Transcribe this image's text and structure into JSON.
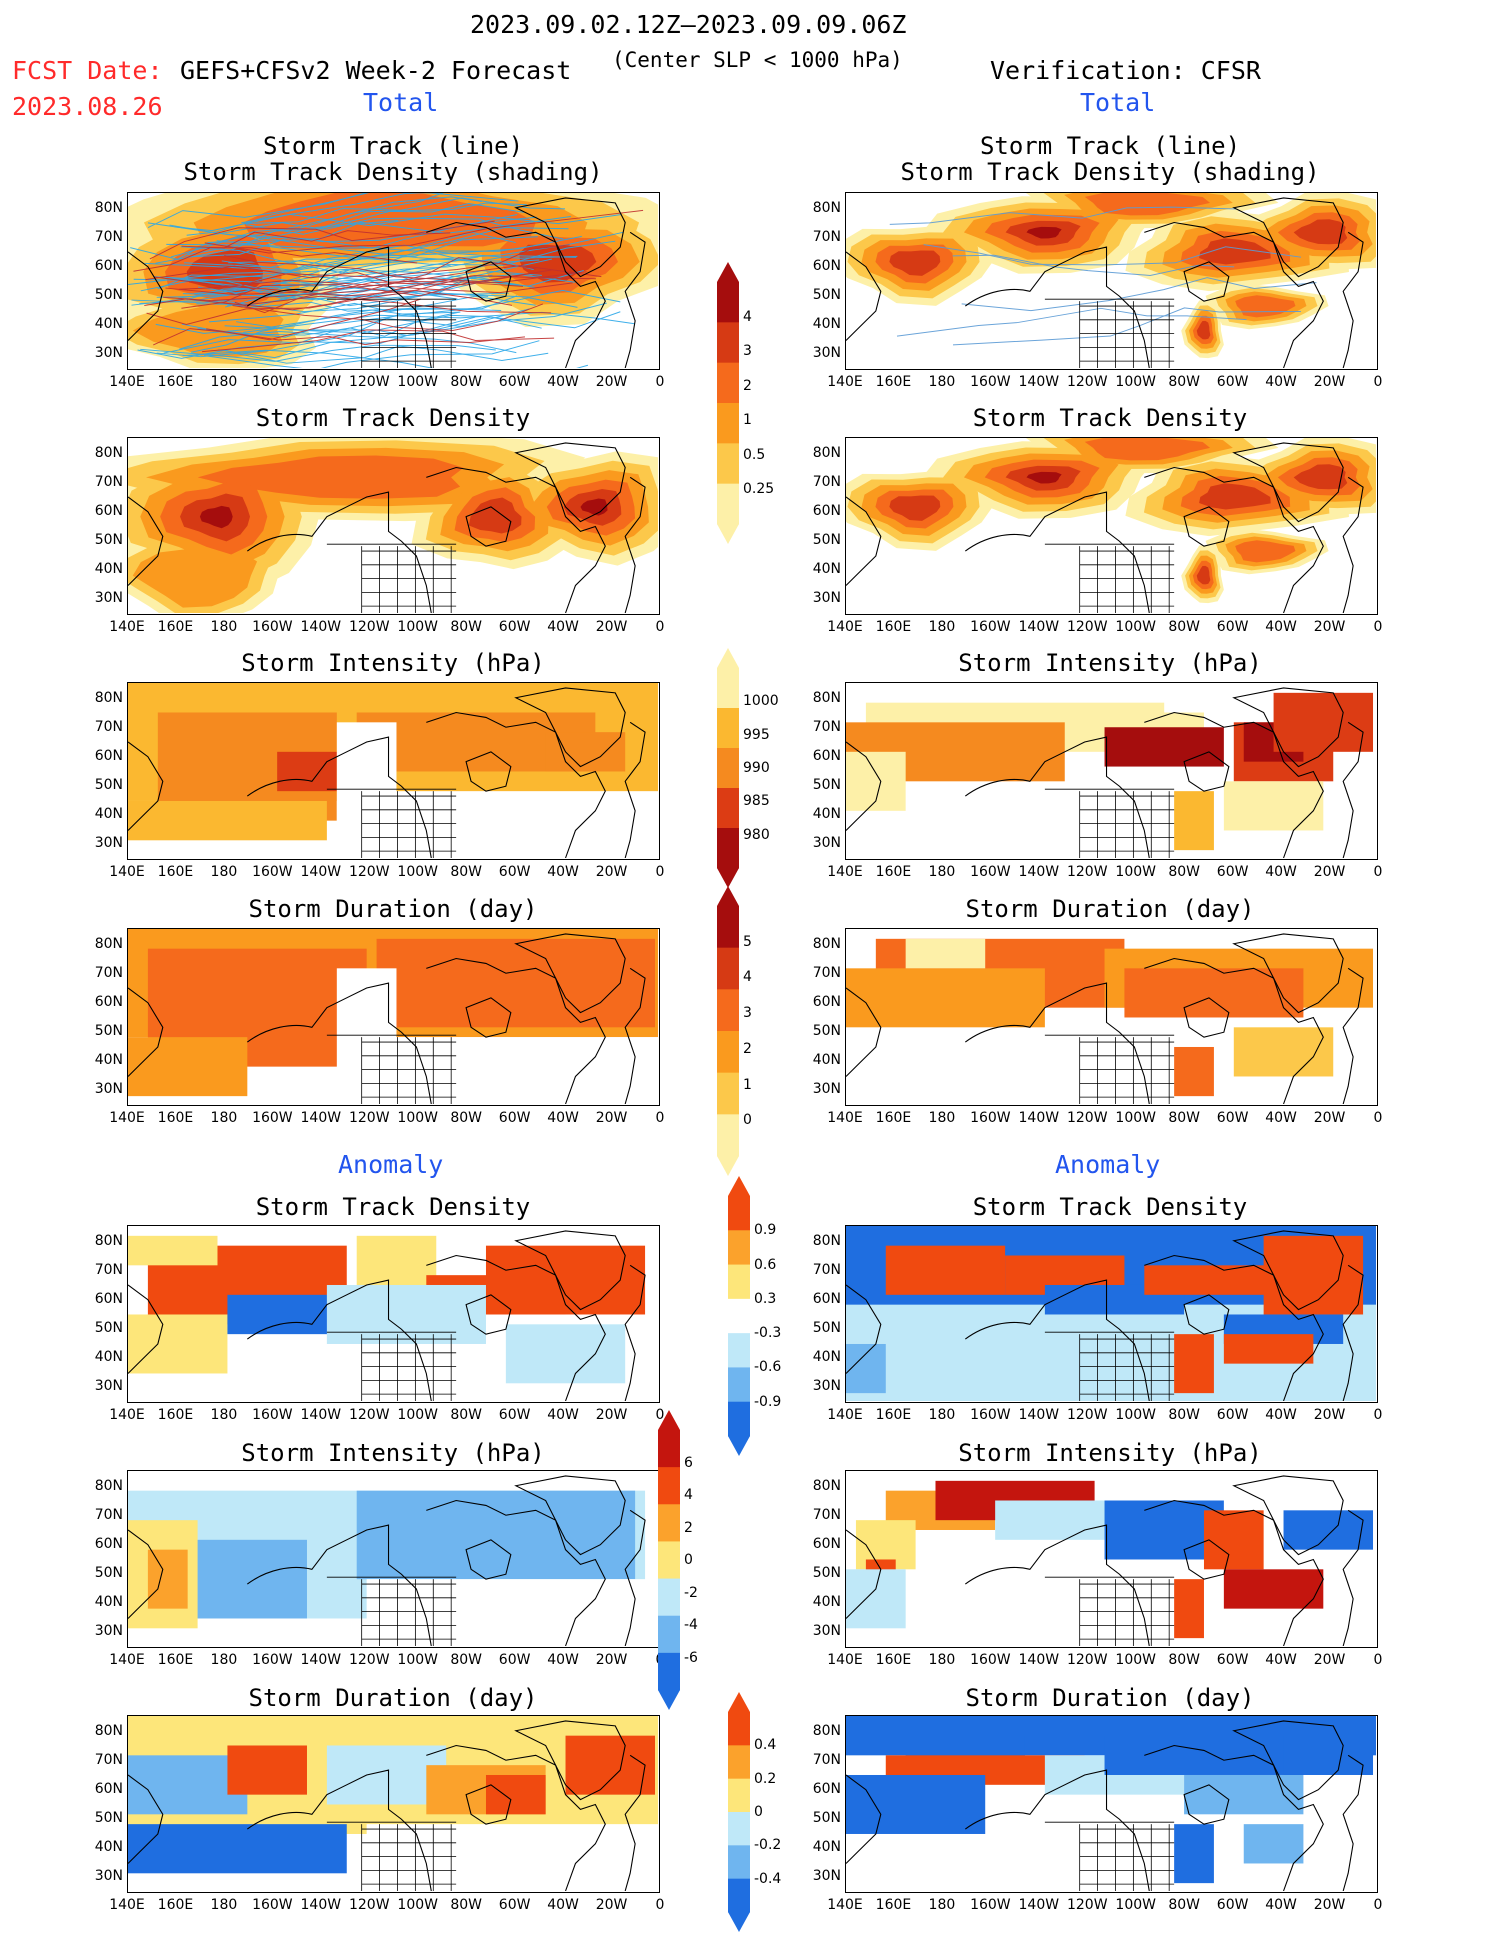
{
  "header": {
    "date_range": "2023.09.02.12Z–2023.09.09.06Z",
    "fcst_label": "FCST Date:",
    "fcst_date": "2023.08.26",
    "model_title": "GEFS+CFSv2 Week-2 Forecast",
    "center_slp": "(Center SLP < 1000 hPa)",
    "verification": "Verification: CFSR"
  },
  "sections": {
    "total_left": "Total",
    "total_right": "Total",
    "anomaly_left": "Anomaly",
    "anomaly_right": "Anomaly"
  },
  "panel_titles": {
    "storm_track_line": "Storm Track (line)",
    "storm_track_shading": "Storm Track Density (shading)",
    "storm_track_density": "Storm Track Density",
    "storm_intensity": "Storm Intensity (hPa)",
    "storm_duration": "Storm Duration (day)"
  },
  "axes": {
    "lat_ticks": [
      "80N",
      "70N",
      "60N",
      "50N",
      "40N",
      "30N"
    ],
    "lon_ticks": [
      "140E",
      "160E",
      "180",
      "160W",
      "140W",
      "120W",
      "100W",
      "80W",
      "60W",
      "40W",
      "20W",
      "0"
    ]
  },
  "colorbars": {
    "density_total": {
      "labels": [
        "4",
        "3",
        "2",
        "1",
        "0.5",
        "0.25"
      ],
      "colors": [
        "#a50d0d",
        "#d63a14",
        "#f56a1c",
        "#fa9a1e",
        "#fcc84a",
        "#fdf0a8"
      ]
    },
    "intensity_total": {
      "labels": [
        "1000",
        "995",
        "990",
        "985",
        "980"
      ],
      "colors": [
        "#fdf0a8",
        "#fbb830",
        "#f58a1f",
        "#dc3c14",
        "#a50d0d"
      ]
    },
    "duration_total": {
      "labels": [
        "5",
        "4",
        "3",
        "2",
        "1",
        "0"
      ],
      "colors": [
        "#a50d0d",
        "#d63a14",
        "#f56a1c",
        "#fa9a1e",
        "#fcc84a",
        "#fdf0a8"
      ]
    },
    "density_anom": {
      "labels": [
        "0.9",
        "0.6",
        "0.3",
        "-0.3",
        "-0.6",
        "-0.9"
      ],
      "colors": [
        "#f04a10",
        "#fba22c",
        "#fde67a",
        "#ffffff",
        "#bfe8f8",
        "#6fb5ef",
        "#1f6ee0"
      ]
    },
    "intensity_anom": {
      "labels": [
        "6",
        "4",
        "2",
        "0",
        "-2",
        "-4",
        "-6"
      ],
      "colors": [
        "#c4150e",
        "#f04a10",
        "#fba22c",
        "#fde67a",
        "#bfe8f8",
        "#6fb5ef",
        "#1f6ee0"
      ]
    },
    "duration_anom": {
      "labels": [
        "0.4",
        "0.2",
        "0",
        "-0.2",
        "-0.4"
      ],
      "colors": [
        "#f04a10",
        "#fba22c",
        "#fde67a",
        "#bfe8f8",
        "#6fb5ef",
        "#1f6ee0"
      ]
    }
  },
  "colors": {
    "header_red": "#ff2a2a",
    "section_blue": "#2255ee",
    "track_forecast": "#2aa7e8",
    "track_verif": "#5b9bd5"
  }
}
